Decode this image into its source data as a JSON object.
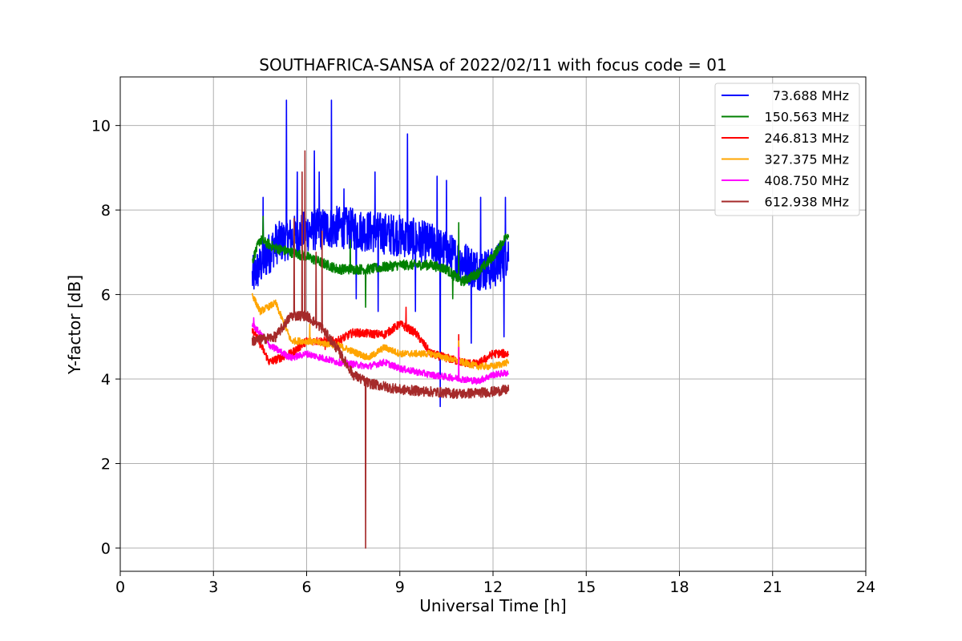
{
  "chart_data": {
    "type": "line",
    "title": "SOUTHAFRICA-SANSA of 2022/02/11 with focus code = 01",
    "xlabel": "Universal Time [h]",
    "ylabel": "Y-factor [dB]",
    "xlim": [
      0,
      24
    ],
    "ylim": [
      -0.55,
      11.15
    ],
    "xticks": [
      "0",
      "3",
      "6",
      "9",
      "12",
      "15",
      "18",
      "21",
      "24"
    ],
    "yticks": [
      "0",
      "2",
      "4",
      "6",
      "8",
      "10"
    ],
    "grid": true,
    "legend_position": "top-right",
    "series": [
      {
        "name": "73.688 MHz",
        "color": "#0000ff",
        "baseline": [
          [
            4.25,
            6.4
          ],
          [
            5,
            7.2
          ],
          [
            6,
            7.5
          ],
          [
            7,
            7.6
          ],
          [
            8,
            7.5
          ],
          [
            9,
            7.4
          ],
          [
            10,
            7.2
          ],
          [
            10.5,
            7.0
          ],
          [
            11,
            6.8
          ],
          [
            11.5,
            6.6
          ],
          [
            12,
            6.6
          ],
          [
            12.5,
            7.0
          ]
        ],
        "noise": 0.5,
        "spikes": [
          [
            4.6,
            8.3
          ],
          [
            5.35,
            10.6
          ],
          [
            5.7,
            8.9
          ],
          [
            6.25,
            9.4
          ],
          [
            6.4,
            8.9
          ],
          [
            6.8,
            10.6
          ],
          [
            7.2,
            8.5
          ],
          [
            8.2,
            8.9
          ],
          [
            9.25,
            9.8
          ],
          [
            10.2,
            8.8
          ],
          [
            10.5,
            8.7
          ],
          [
            11.6,
            8.3
          ],
          [
            12.4,
            8.3
          ],
          [
            9.5,
            5.6
          ],
          [
            10.3,
            3.35
          ],
          [
            11.3,
            4.85
          ],
          [
            12.35,
            5.0
          ],
          [
            8.3,
            5.6
          ],
          [
            7.6,
            5.9
          ]
        ]
      },
      {
        "name": "150.563 MHz",
        "color": "#008000",
        "baseline": [
          [
            4.25,
            6.8
          ],
          [
            4.5,
            7.3
          ],
          [
            5,
            7.1
          ],
          [
            6,
            6.9
          ],
          [
            7,
            6.6
          ],
          [
            8,
            6.6
          ],
          [
            9,
            6.7
          ],
          [
            10,
            6.7
          ],
          [
            10.5,
            6.6
          ],
          [
            11,
            6.3
          ],
          [
            11.5,
            6.5
          ],
          [
            12,
            6.9
          ],
          [
            12.5,
            7.45
          ]
        ],
        "noise": 0.12,
        "spikes": [
          [
            4.6,
            7.85
          ],
          [
            5.6,
            7.5
          ],
          [
            7.4,
            7.3
          ],
          [
            7.9,
            5.7
          ],
          [
            10.7,
            5.9
          ],
          [
            10.9,
            7.7
          ]
        ]
      },
      {
        "name": "246.813 MHz",
        "color": "#ff0000",
        "baseline": [
          [
            4.25,
            5.2
          ],
          [
            4.8,
            4.4
          ],
          [
            5.5,
            4.6
          ],
          [
            6,
            4.9
          ],
          [
            7,
            4.9
          ],
          [
            7.5,
            5.1
          ],
          [
            8.5,
            5.05
          ],
          [
            9,
            5.3
          ],
          [
            9.5,
            5.1
          ],
          [
            10,
            4.6
          ],
          [
            11,
            4.4
          ],
          [
            11.5,
            4.35
          ],
          [
            12,
            4.6
          ],
          [
            12.5,
            4.6
          ]
        ],
        "noise": 0.1,
        "spikes": [
          [
            9.2,
            5.7
          ],
          [
            10.9,
            5.05
          ],
          [
            6.6,
            4.7
          ]
        ]
      },
      {
        "name": "327.375 MHz",
        "color": "#ffa500",
        "baseline": [
          [
            4.25,
            6.0
          ],
          [
            4.5,
            5.6
          ],
          [
            5,
            5.8
          ],
          [
            5.5,
            4.9
          ],
          [
            6,
            4.9
          ],
          [
            7,
            4.8
          ],
          [
            8,
            4.5
          ],
          [
            8.5,
            4.75
          ],
          [
            9,
            4.6
          ],
          [
            10,
            4.6
          ],
          [
            11,
            4.4
          ],
          [
            11.5,
            4.3
          ],
          [
            12,
            4.3
          ],
          [
            12.5,
            4.4
          ]
        ],
        "noise": 0.08,
        "spikes": [
          [
            6.1,
            5.3
          ],
          [
            10.9,
            4.9
          ]
        ]
      },
      {
        "name": "408.750 MHz",
        "color": "#ff00ff",
        "baseline": [
          [
            4.25,
            5.3
          ],
          [
            4.8,
            4.8
          ],
          [
            5.5,
            4.5
          ],
          [
            6,
            4.6
          ],
          [
            7,
            4.4
          ],
          [
            8,
            4.3
          ],
          [
            8.5,
            4.4
          ],
          [
            9,
            4.25
          ],
          [
            10,
            4.1
          ],
          [
            11,
            4.0
          ],
          [
            11.5,
            3.95
          ],
          [
            12,
            4.1
          ],
          [
            12.5,
            4.15
          ]
        ],
        "noise": 0.08,
        "spikes": [
          [
            4.3,
            5.45
          ],
          [
            10.9,
            4.75
          ]
        ]
      },
      {
        "name": "612.938 MHz",
        "color": "#a52a2a",
        "baseline": [
          [
            4.25,
            4.9
          ],
          [
            5,
            5.0
          ],
          [
            5.5,
            5.5
          ],
          [
            6,
            5.5
          ],
          [
            6.5,
            5.2
          ],
          [
            7,
            4.7
          ],
          [
            7.5,
            4.1
          ],
          [
            8,
            3.9
          ],
          [
            9,
            3.75
          ],
          [
            10,
            3.7
          ],
          [
            11,
            3.65
          ],
          [
            12,
            3.7
          ],
          [
            12.5,
            3.75
          ]
        ],
        "noise": 0.12,
        "spikes": [
          [
            5.95,
            9.4
          ],
          [
            5.85,
            8.9
          ],
          [
            6.5,
            7.5
          ],
          [
            5.6,
            7.8
          ],
          [
            6.3,
            7.0
          ],
          [
            7.9,
            0.0
          ]
        ]
      }
    ]
  }
}
